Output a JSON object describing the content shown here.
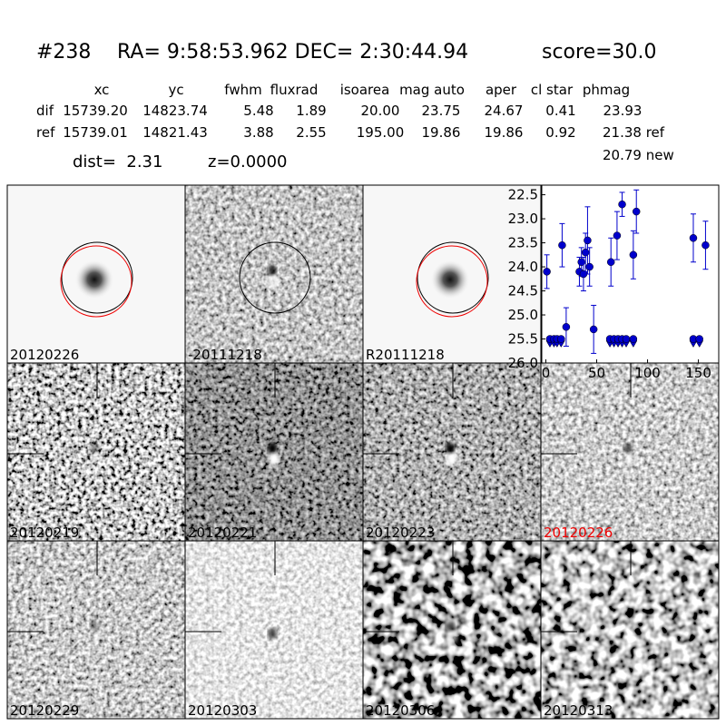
{
  "header": {
    "id": "#238",
    "coords": "RA= 9:58:53.962 DEC= 2:30:44.94",
    "score": "score=30.0"
  },
  "table": {
    "columns": [
      "xc",
      "yc",
      "fwhm",
      "fluxrad",
      "isoarea",
      "mag auto",
      "aper",
      "cl star",
      "phmag"
    ],
    "rows": [
      [
        "dif",
        "15739.20",
        "14823.74",
        "5.48",
        "1.89",
        "20.00",
        "23.75",
        "24.67",
        "0.41",
        "23.93"
      ],
      [
        "ref",
        "15739.01",
        "14821.43",
        "3.88",
        "2.55",
        "195.00",
        "19.86",
        "19.86",
        "0.92",
        "21.38 ref"
      ]
    ],
    "extra": "20.79 new"
  },
  "dist": "dist=  2.31",
  "z": "z=0.0000",
  "panels": [
    "20120226",
    "-20111218",
    "R20111218",
    "20120219",
    "20120221",
    "20120223",
    "20120226",
    "20120229",
    "20120303",
    "20120306",
    "20120313"
  ],
  "chart_data": {
    "type": "scatter",
    "xlim": [
      -4,
      170
    ],
    "ylim": [
      26.0,
      22.3
    ],
    "xticks": [
      0,
      50,
      100,
      150
    ],
    "yticks": [
      22.5,
      {
        "value": 23.0,
        "label": "23.0"
      },
      23.5,
      {
        "value": 24.0,
        "label": "24.0"
      },
      24.5,
      {
        "value": 25.0,
        "label": "25.0"
      },
      25.5,
      {
        "value": 26.0,
        "label": "26.0"
      }
    ],
    "series": [
      {
        "color": "#0000cc",
        "marker": "o",
        "x": [
          1,
          16,
          20,
          33,
          35,
          37,
          39,
          41,
          43,
          47,
          64,
          70,
          75,
          86,
          89,
          145,
          157
        ],
        "values": [
          24.1,
          23.55,
          25.25,
          24.1,
          23.9,
          24.15,
          23.7,
          23.45,
          24.0,
          25.3,
          23.9,
          23.35,
          22.7,
          23.75,
          22.85,
          23.4,
          23.55
        ],
        "errors": [
          0.35,
          0.45,
          0.4,
          0.3,
          0.3,
          0.35,
          0.4,
          0.7,
          0.4,
          0.5,
          0.5,
          0.5,
          0.25,
          0.5,
          0.45,
          0.5,
          0.5
        ]
      },
      {
        "color": "#0000cc",
        "marker": "v",
        "x": [
          4,
          8,
          11,
          15,
          63,
          67,
          71,
          75,
          79,
          86,
          145,
          151
        ],
        "values": [
          25.5,
          25.5,
          25.5,
          25.5,
          25.5,
          25.5,
          25.5,
          25.5,
          25.5,
          25.5,
          25.5,
          25.5
        ]
      }
    ]
  }
}
